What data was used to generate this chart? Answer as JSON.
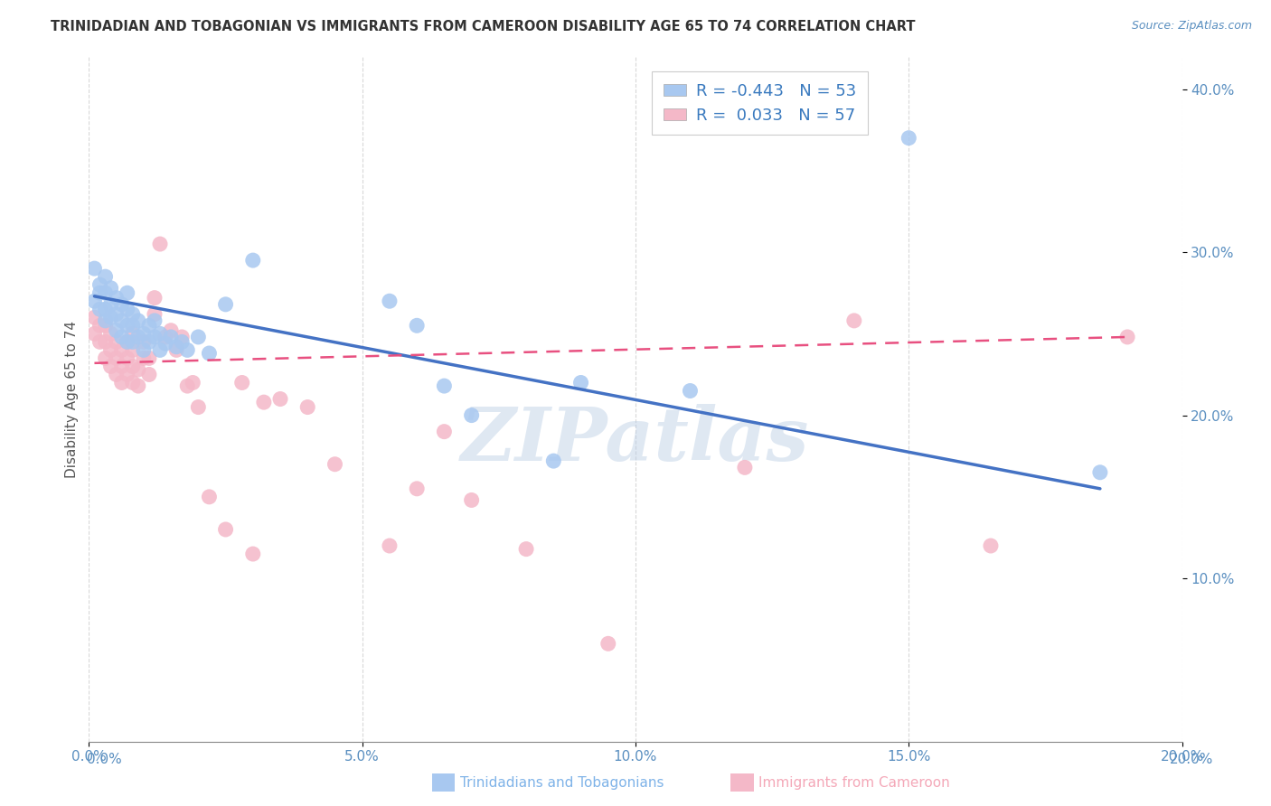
{
  "title": "TRINIDADIAN AND TOBAGONIAN VS IMMIGRANTS FROM CAMEROON DISABILITY AGE 65 TO 74 CORRELATION CHART",
  "source": "Source: ZipAtlas.com",
  "ylabel": "Disability Age 65 to 74",
  "xlim": [
    0.0,
    0.2
  ],
  "ylim": [
    0.0,
    0.42
  ],
  "xticks": [
    0.0,
    0.05,
    0.1,
    0.15,
    0.2
  ],
  "yticks": [
    0.1,
    0.2,
    0.3,
    0.4
  ],
  "xticklabels": [
    "0.0%",
    "5.0%",
    "10.0%",
    "15.0%",
    "20.0%"
  ],
  "yticklabels": [
    "10.0%",
    "20.0%",
    "30.0%",
    "40.0%"
  ],
  "blue_R": -0.443,
  "blue_N": 53,
  "pink_R": 0.033,
  "pink_N": 57,
  "blue_color": "#a8c8f0",
  "pink_color": "#f4b8c8",
  "blue_line_color": "#4472c4",
  "pink_line_color": "#e85080",
  "legend_label_blue": "Trinidadians and Tobagonians",
  "legend_label_pink": "Immigrants from Cameroon",
  "blue_points_x": [
    0.001,
    0.001,
    0.002,
    0.002,
    0.002,
    0.003,
    0.003,
    0.003,
    0.003,
    0.004,
    0.004,
    0.004,
    0.005,
    0.005,
    0.005,
    0.006,
    0.006,
    0.006,
    0.007,
    0.007,
    0.007,
    0.007,
    0.008,
    0.008,
    0.008,
    0.009,
    0.009,
    0.01,
    0.01,
    0.011,
    0.011,
    0.012,
    0.012,
    0.013,
    0.013,
    0.014,
    0.015,
    0.016,
    0.017,
    0.018,
    0.02,
    0.022,
    0.025,
    0.03,
    0.055,
    0.06,
    0.065,
    0.07,
    0.085,
    0.09,
    0.11,
    0.15,
    0.185
  ],
  "blue_points_y": [
    0.27,
    0.29,
    0.265,
    0.275,
    0.28,
    0.258,
    0.265,
    0.275,
    0.285,
    0.26,
    0.268,
    0.278,
    0.252,
    0.262,
    0.272,
    0.248,
    0.258,
    0.268,
    0.245,
    0.255,
    0.265,
    0.275,
    0.245,
    0.255,
    0.262,
    0.248,
    0.258,
    0.24,
    0.25,
    0.245,
    0.255,
    0.248,
    0.258,
    0.24,
    0.25,
    0.244,
    0.248,
    0.242,
    0.245,
    0.24,
    0.248,
    0.238,
    0.268,
    0.295,
    0.27,
    0.255,
    0.218,
    0.2,
    0.172,
    0.22,
    0.215,
    0.37,
    0.165
  ],
  "pink_points_x": [
    0.001,
    0.001,
    0.002,
    0.002,
    0.003,
    0.003,
    0.003,
    0.004,
    0.004,
    0.004,
    0.005,
    0.005,
    0.005,
    0.006,
    0.006,
    0.006,
    0.007,
    0.007,
    0.007,
    0.008,
    0.008,
    0.008,
    0.008,
    0.009,
    0.009,
    0.01,
    0.01,
    0.011,
    0.011,
    0.012,
    0.012,
    0.013,
    0.014,
    0.015,
    0.016,
    0.017,
    0.018,
    0.019,
    0.02,
    0.022,
    0.025,
    0.028,
    0.03,
    0.032,
    0.035,
    0.04,
    0.045,
    0.055,
    0.06,
    0.065,
    0.07,
    0.08,
    0.095,
    0.12,
    0.14,
    0.165,
    0.19
  ],
  "pink_points_y": [
    0.25,
    0.26,
    0.245,
    0.255,
    0.235,
    0.245,
    0.255,
    0.23,
    0.24,
    0.25,
    0.225,
    0.235,
    0.245,
    0.22,
    0.23,
    0.24,
    0.225,
    0.235,
    0.245,
    0.22,
    0.23,
    0.24,
    0.25,
    0.218,
    0.228,
    0.235,
    0.245,
    0.225,
    0.235,
    0.262,
    0.272,
    0.305,
    0.248,
    0.252,
    0.24,
    0.248,
    0.218,
    0.22,
    0.205,
    0.15,
    0.13,
    0.22,
    0.115,
    0.208,
    0.21,
    0.205,
    0.17,
    0.12,
    0.155,
    0.19,
    0.148,
    0.118,
    0.06,
    0.168,
    0.258,
    0.12,
    0.248
  ],
  "blue_line_x": [
    0.001,
    0.185
  ],
  "blue_line_y": [
    0.273,
    0.155
  ],
  "pink_line_x": [
    0.001,
    0.19
  ],
  "pink_line_y": [
    0.232,
    0.248
  ],
  "watermark": "ZIPatlas",
  "background_color": "#ffffff",
  "grid_color": "#d8d8d8"
}
